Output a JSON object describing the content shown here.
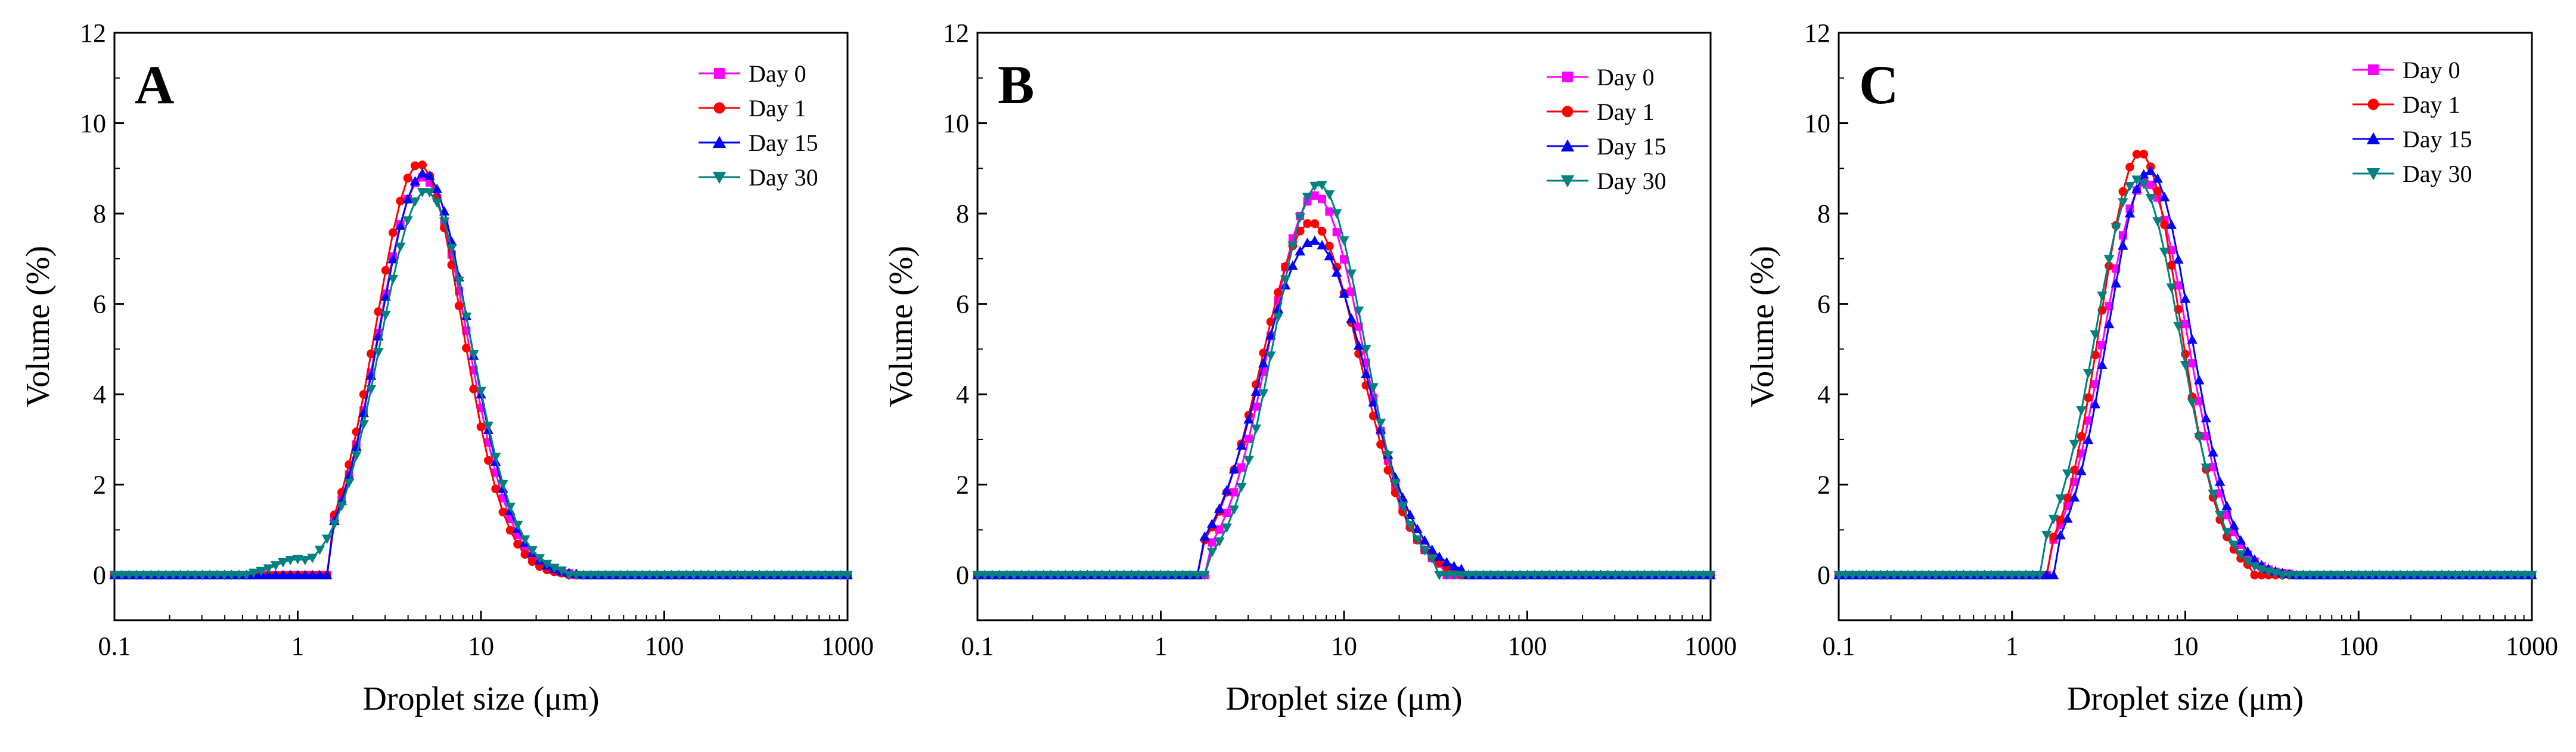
{
  "figure": {
    "panels": [
      {
        "letter": "A"
      },
      {
        "letter": "B"
      },
      {
        "letter": "C"
      }
    ]
  },
  "chart_data": [
    {
      "type": "line",
      "panel": "A",
      "xlabel": "Droplet size (μm)",
      "ylabel": "Volume (%)",
      "xscale": "log",
      "xlim": [
        0.1,
        1000
      ],
      "ylim": [
        -1,
        12
      ],
      "xticks": [
        0.1,
        1,
        10,
        100,
        1000
      ],
      "xtick_labels": [
        "0.1",
        "1",
        "10",
        "100",
        "1000"
      ],
      "yticks": [
        0,
        2,
        4,
        6,
        8,
        10,
        12
      ],
      "ytick_labels": [
        "0",
        "2",
        "4",
        "6",
        "8",
        "10",
        "12"
      ],
      "legend_position": "top-right",
      "series": [
        {
          "name": "Day 0",
          "color": "#ff00ff",
          "marker": "square",
          "dist": {
            "peak_x": 4.8,
            "peak_y": 8.8,
            "sigma": 0.242,
            "start_x": 1.5,
            "end_x": 33,
            "baseline_start": 0.0,
            "baseline_end": 0.0
          }
        },
        {
          "name": "Day 1",
          "color": "#ff0000",
          "marker": "circle",
          "dist": {
            "peak_x": 4.6,
            "peak_y": 9.1,
            "sigma": 0.236,
            "start_x": 1.5,
            "end_x": 30,
            "baseline_start": 0.0,
            "baseline_end": 0.0
          }
        },
        {
          "name": "Day 15",
          "color": "#0000ff",
          "marker": "triangle-up",
          "dist": {
            "peak_x": 4.9,
            "peak_y": 8.9,
            "sigma": 0.245,
            "start_x": 1.45,
            "end_x": 36,
            "baseline_start": 0.0,
            "baseline_end": 0.0
          }
        },
        {
          "name": "Day 30",
          "color": "#008080",
          "marker": "triangle-down",
          "dist": {
            "peak_x": 5.0,
            "peak_y": 8.5,
            "sigma": 0.248,
            "start_x": 0.55,
            "end_x": 28,
            "baseline_start": 0.0,
            "baseline_end": 0.0,
            "shoulder": {
              "x": 1.0,
              "y": 0.35
            }
          }
        }
      ]
    },
    {
      "type": "line",
      "panel": "B",
      "xlabel": "Droplet size (μm)",
      "ylabel": "Volume (%)",
      "xscale": "log",
      "xlim": [
        0.1,
        1000
      ],
      "ylim": [
        -1,
        12
      ],
      "xticks": [
        0.1,
        1,
        10,
        100,
        1000
      ],
      "xtick_labels": [
        "0.1",
        "1",
        "10",
        "100",
        "1000"
      ],
      "yticks": [
        0,
        2,
        4,
        6,
        8,
        10,
        12
      ],
      "ytick_labels": [
        "0",
        "2",
        "4",
        "6",
        "8",
        "10",
        "12"
      ],
      "legend_position": "top-right",
      "series": [
        {
          "name": "Day 0",
          "color": "#ff00ff",
          "marker": "square",
          "dist": {
            "peak_x": 7.0,
            "peak_y": 8.4,
            "sigma": 0.255,
            "start_x": 1.75,
            "end_x": 36,
            "baseline_start": 0.0,
            "baseline_end": 0.0
          }
        },
        {
          "name": "Day 1",
          "color": "#ff0000",
          "marker": "circle",
          "dist": {
            "peak_x": 6.6,
            "peak_y": 7.8,
            "sigma": 0.27,
            "start_x": 1.65,
            "end_x": 42,
            "baseline_start": 0.0,
            "baseline_end": 0.0
          }
        },
        {
          "name": "Day 15",
          "color": "#0000ff",
          "marker": "triangle-up",
          "dist": {
            "peak_x": 6.8,
            "peak_y": 7.4,
            "sigma": 0.285,
            "start_x": 1.6,
            "end_x": 44,
            "baseline_start": 0.0,
            "baseline_end": 0.0
          }
        },
        {
          "name": "Day 30",
          "color": "#008080",
          "marker": "triangle-down",
          "dist": {
            "peak_x": 7.3,
            "peak_y": 8.65,
            "sigma": 0.245,
            "start_x": 1.8,
            "end_x": 32,
            "baseline_start": 0.0,
            "baseline_end": 0.0
          }
        }
      ]
    },
    {
      "type": "line",
      "panel": "C",
      "xlabel": "Droplet size (μm)",
      "ylabel": "Volume (%)",
      "xscale": "log",
      "xlim": [
        0.1,
        1000
      ],
      "ylim": [
        -1,
        12
      ],
      "xticks": [
        0.1,
        1,
        10,
        100,
        1000
      ],
      "xtick_labels": [
        "0.1",
        "1",
        "10",
        "100",
        "1000"
      ],
      "yticks": [
        0,
        2,
        4,
        6,
        8,
        10,
        12
      ],
      "ytick_labels": [
        "0",
        "2",
        "4",
        "6",
        "8",
        "10",
        "12"
      ],
      "legend_position": "top-right",
      "series": [
        {
          "name": "Day 0",
          "color": "#ff00ff",
          "marker": "square",
          "dist": {
            "peak_x": 5.9,
            "peak_y": 8.7,
            "sigma": 0.242,
            "start_x": 1.65,
            "end_x": 40,
            "baseline_start": 0.0,
            "baseline_end": 0.0
          }
        },
        {
          "name": "Day 1",
          "color": "#ff0000",
          "marker": "circle",
          "dist": {
            "peak_x": 5.5,
            "peak_y": 9.35,
            "sigma": 0.228,
            "start_x": 1.6,
            "end_x": 24,
            "baseline_start": 0.0,
            "baseline_end": 0.0
          }
        },
        {
          "name": "Day 15",
          "color": "#0000ff",
          "marker": "triangle-up",
          "dist": {
            "peak_x": 6.2,
            "peak_y": 8.95,
            "sigma": 0.238,
            "start_x": 1.75,
            "end_x": 40,
            "baseline_start": 0.0,
            "baseline_end": 0.0
          }
        },
        {
          "name": "Day 30",
          "color": "#008080",
          "marker": "triangle-down",
          "dist": {
            "peak_x": 5.3,
            "peak_y": 8.75,
            "sigma": 0.245,
            "start_x": 1.55,
            "end_x": 36,
            "baseline_start": 0.0,
            "baseline_end": 0.0
          }
        }
      ]
    }
  ]
}
